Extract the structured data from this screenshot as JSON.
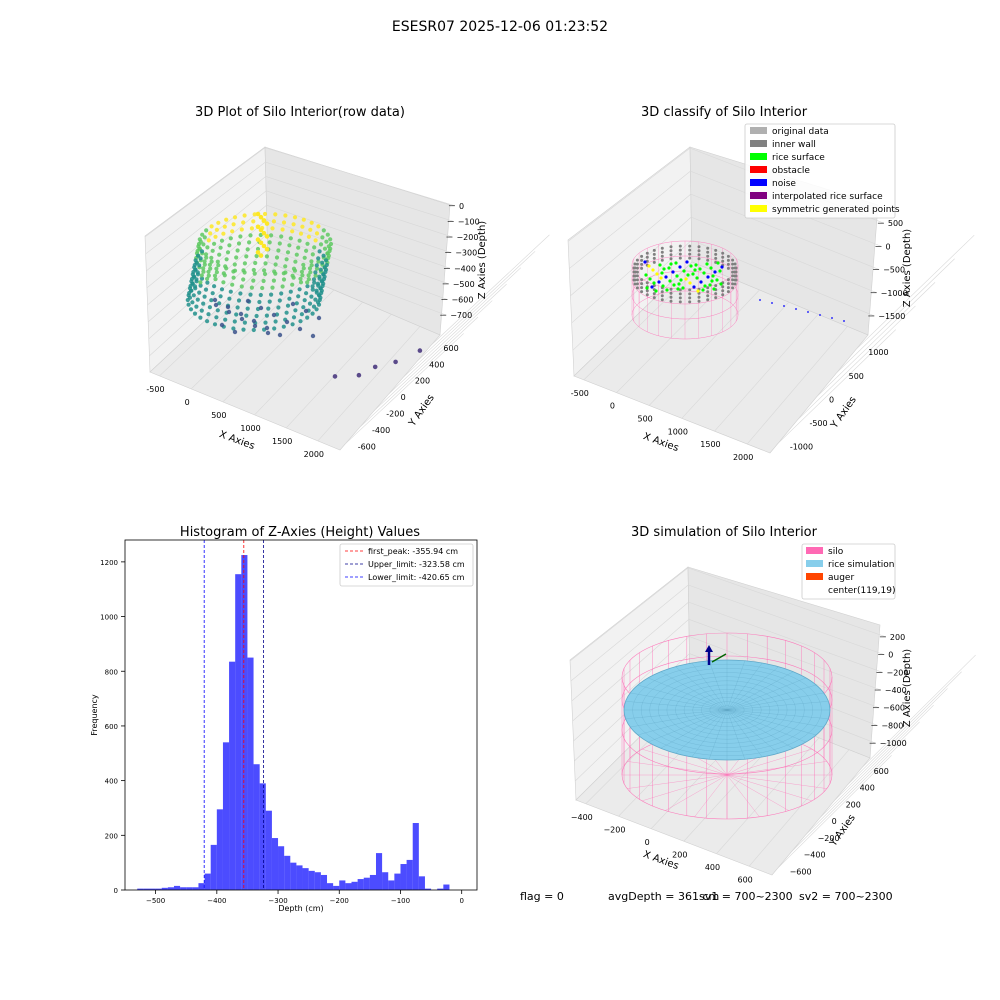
{
  "figure": {
    "suptitle": "ESESR07 2025-12-06 01:23:52",
    "footer": {
      "flag": "flag = 0",
      "avg_depth": "avgDepth = 361 cm",
      "sv1": "sv1 = 700~2300",
      "sv2": "sv2 = 700~2300"
    }
  },
  "chart_data": [
    {
      "id": "raw",
      "type": "scatter3d",
      "title": "3D Plot of Silo Interior(row data)",
      "xlabel": "X Axies",
      "ylabel": "Y Axies",
      "zlabel": "Z Axies (Depth)",
      "x_ticks": [
        "-500",
        "0",
        "500",
        "1000",
        "1500",
        "2000"
      ],
      "y_ticks": [
        "-600",
        "-400",
        "-200",
        "0",
        "200",
        "400",
        "600"
      ],
      "z_ticks": [
        "0",
        "−100",
        "−200",
        "−300",
        "−400",
        "−500",
        "−600",
        "−700"
      ],
      "colormap": [
        "#440154",
        "#3b528b",
        "#21918c",
        "#5ec962",
        "#fde725"
      ],
      "outliers": [
        {
          "x": 1550,
          "y": -250,
          "z": -350
        },
        {
          "x": 1700,
          "y": -100,
          "z": -450
        },
        {
          "x": 1750,
          "y": 50,
          "z": -500
        },
        {
          "x": 1800,
          "y": 250,
          "z": -650
        },
        {
          "x": 1900,
          "y": 450,
          "z": -700
        }
      ]
    },
    {
      "id": "classify",
      "type": "scatter3d",
      "title": "3D classify of Silo Interior",
      "xlabel": "X Axies",
      "ylabel": "Y Axies",
      "zlabel": "Z Axies (Depth)",
      "x_ticks": [
        "-500",
        "0",
        "500",
        "1000",
        "1500",
        "2000"
      ],
      "y_ticks": [
        "-1000",
        "-500",
        "0",
        "500",
        "1000"
      ],
      "z_ticks": [
        "500",
        "0",
        "−500",
        "−1000",
        "−1500"
      ],
      "legend_position": "top-right",
      "legend": [
        {
          "label": "original data",
          "color": "#b0b0b0"
        },
        {
          "label": "inner wall",
          "color": "#808080"
        },
        {
          "label": "rice surface",
          "color": "#00ff00"
        },
        {
          "label": "obstacle",
          "color": "#ff0000"
        },
        {
          "label": "noise",
          "color": "#0000ff"
        },
        {
          "label": "interpolated rice surface",
          "color": "#800080"
        },
        {
          "label": "symmetric generated points",
          "color": "#ffff00"
        }
      ]
    },
    {
      "id": "hist",
      "type": "bar",
      "title": "Histogram of Z-Axies (Height) Values",
      "xlabel": "Depth (cm)",
      "ylabel": "Frequency",
      "xlim": [
        -550,
        25
      ],
      "ylim": [
        0,
        1280
      ],
      "x_ticks": [
        -500,
        -400,
        -300,
        -200,
        -100,
        0
      ],
      "y_ticks": [
        0,
        200,
        400,
        600,
        800,
        1000,
        1200
      ],
      "bar_color": "#0000ff",
      "bin_width": 10,
      "bins_start": [
        -530,
        -520,
        -510,
        -500,
        -490,
        -480,
        -470,
        -460,
        -450,
        -440,
        -430,
        -420,
        -410,
        -400,
        -390,
        -380,
        -370,
        -360,
        -350,
        -340,
        -330,
        -320,
        -310,
        -300,
        -290,
        -280,
        -270,
        -260,
        -250,
        -240,
        -230,
        -220,
        -210,
        -200,
        -190,
        -180,
        -170,
        -160,
        -150,
        -140,
        -130,
        -120,
        -110,
        -100,
        -90,
        -80,
        -70,
        -60,
        -50,
        -40,
        -30,
        -20,
        -10,
        0
      ],
      "counts": [
        5,
        5,
        5,
        5,
        8,
        10,
        15,
        10,
        10,
        10,
        25,
        60,
        165,
        295,
        540,
        835,
        1155,
        1225,
        850,
        460,
        390,
        290,
        190,
        160,
        125,
        100,
        90,
        80,
        70,
        65,
        55,
        25,
        15,
        35,
        25,
        30,
        40,
        45,
        55,
        135,
        65,
        35,
        60,
        95,
        110,
        245,
        50,
        5,
        0,
        5,
        20,
        0,
        0,
        0
      ],
      "lines": [
        {
          "label": "first_peak: -355.94 cm",
          "value": -355.94,
          "color": "#ff0000"
        },
        {
          "label": "Upper_limit: -323.58 cm",
          "value": -323.58,
          "color": "#00008b"
        },
        {
          "label": "Lower_limit: -420.65 cm",
          "value": -420.65,
          "color": "#0000ff"
        }
      ]
    },
    {
      "id": "sim",
      "type": "surface3d",
      "title": "3D simulation of Silo Interior",
      "xlabel": "X Axies",
      "ylabel": "Y Axies",
      "zlabel": "Z Axies (Depth)",
      "x_ticks": [
        "−400",
        "−200",
        "0",
        "200",
        "400",
        "600"
      ],
      "y_ticks": [
        "−600",
        "−400",
        "−200",
        "0",
        "200",
        "400",
        "600"
      ],
      "z_ticks": [
        "200",
        "0",
        "−200",
        "−400",
        "−600",
        "−800",
        "−1000"
      ],
      "legend_position": "top-right",
      "legend": [
        {
          "label": "silo",
          "color": "#ff69b4"
        },
        {
          "label": "rice simulation",
          "color": "#87ceeb"
        },
        {
          "label": "auger",
          "color": "#ff4500"
        },
        {
          "label": "center(119,19)",
          "color": ""
        }
      ]
    }
  ]
}
